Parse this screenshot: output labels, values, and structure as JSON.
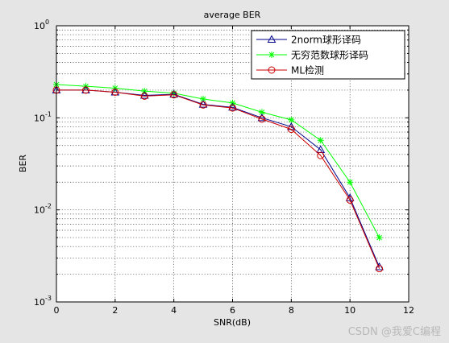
{
  "chart_data": {
    "type": "line",
    "title": "average BER",
    "xlabel": "SNR(dB)",
    "ylabel": "BER",
    "xlim": [
      0,
      12
    ],
    "xticks": [
      0,
      2,
      4,
      6,
      8,
      10,
      12
    ],
    "ylim": [
      0.001,
      1
    ],
    "yscale": "log",
    "ytick_labels": [
      {
        "base": "10",
        "exp": "0"
      },
      {
        "base": "10",
        "exp": "-1"
      },
      {
        "base": "10",
        "exp": "-2"
      },
      {
        "base": "10",
        "exp": "-3"
      }
    ],
    "grid": true,
    "legend_position": "top-right",
    "x": [
      0,
      1,
      2,
      3,
      4,
      5,
      6,
      7,
      8,
      9,
      10,
      11
    ],
    "series": [
      {
        "name": "2norm球形译码",
        "color": "#00008b",
        "marker": "triangle",
        "values": [
          0.2,
          0.2,
          0.19,
          0.175,
          0.18,
          0.14,
          0.13,
          0.1,
          0.08,
          0.045,
          0.0135,
          0.0024
        ]
      },
      {
        "name": "无穷范数球形译码",
        "color": "#00ff00",
        "marker": "star",
        "values": [
          0.23,
          0.22,
          0.21,
          0.195,
          0.185,
          0.16,
          0.145,
          0.115,
          0.095,
          0.057,
          0.02,
          0.005
        ]
      },
      {
        "name": "ML检测",
        "color": "#cc0000",
        "marker": "circle",
        "values": [
          0.2,
          0.2,
          0.19,
          0.172,
          0.178,
          0.138,
          0.128,
          0.097,
          0.075,
          0.039,
          0.0128,
          0.0023
        ]
      }
    ]
  },
  "watermark": "CSDN @我爱C编程"
}
